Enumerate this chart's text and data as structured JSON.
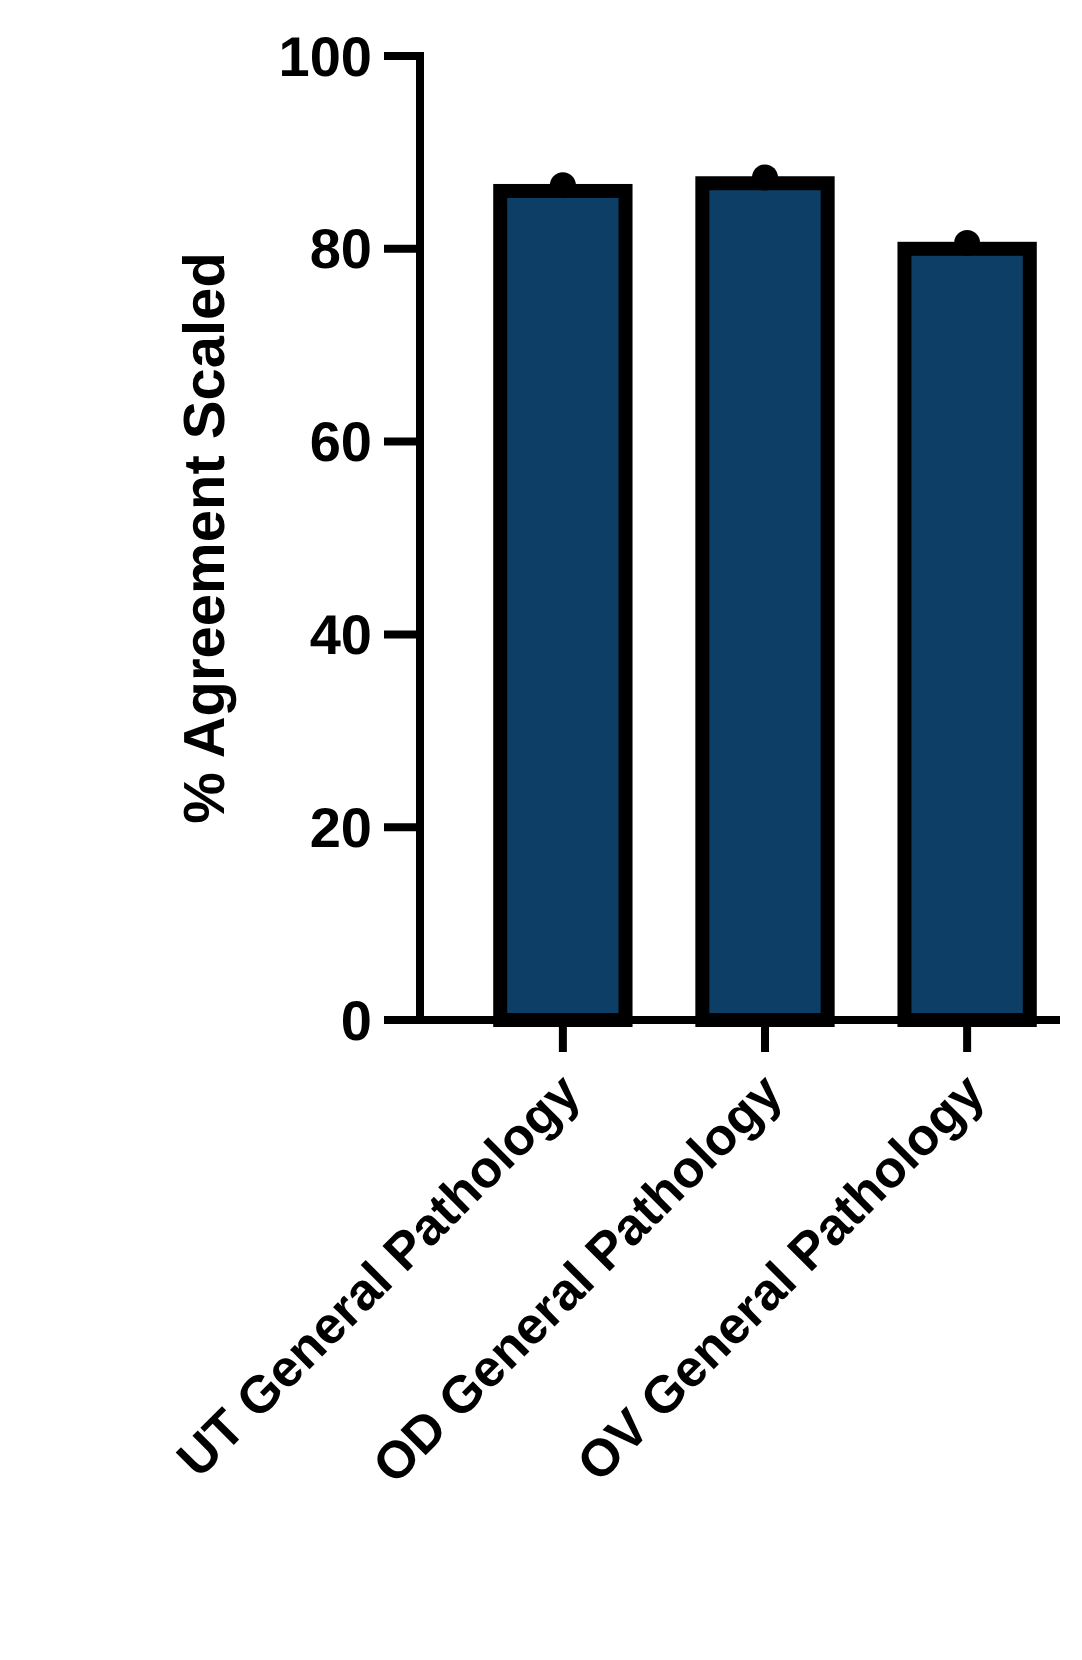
{
  "chart_data": {
    "type": "bar",
    "ylabel": "% Agreement Scaled",
    "categories": [
      "UT General Pathology",
      "OD General Pathology",
      "OV General Pathology"
    ],
    "series": [
      {
        "color": "#0d3f66",
        "values": [
          86,
          86.8,
          80
        ]
      },
      {
        "type": "scatter",
        "color": "#000000",
        "x": [
          "UT General Pathology",
          "OD General Pathology",
          "OV General Pathology"
        ],
        "values": [
          86.6,
          87.4,
          80.6
        ]
      }
    ],
    "ylim": [
      0,
      100
    ],
    "yticks": [
      0,
      20,
      40,
      60,
      80,
      100
    ],
    "grid": false,
    "marker": "circle"
  }
}
